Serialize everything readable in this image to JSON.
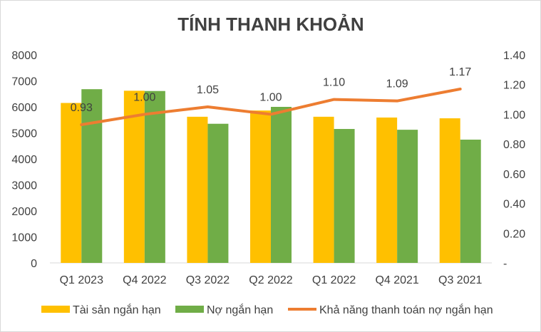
{
  "chart_data": {
    "type": "bar",
    "title": "TÍNH THANH KHOẢN",
    "categories": [
      "Q1 2023",
      "Q4 2022",
      "Q3 2022",
      "Q2 2022",
      "Q1 2022",
      "Q4 2021",
      "Q3 2021"
    ],
    "series": [
      {
        "name": "Tài sản ngắn hạn",
        "type": "bar",
        "axis": "left",
        "color": "#ffc000",
        "values": [
          6150,
          6620,
          5620,
          5860,
          5620,
          5590,
          5560
        ]
      },
      {
        "name": "Nợ ngắn hạn",
        "type": "bar",
        "axis": "left",
        "color": "#70ad47",
        "values": [
          6680,
          6610,
          5350,
          6000,
          5150,
          5120,
          4740
        ]
      },
      {
        "name": "Khả năng thanh toán nợ ngắn hạn",
        "type": "line",
        "axis": "right",
        "color": "#ed7d31",
        "values": [
          0.93,
          1.0,
          1.05,
          1.0,
          1.1,
          1.09,
          1.17
        ],
        "labels": [
          "0.93",
          "1.00",
          "1.05",
          "1.00",
          "1.10",
          "1.09",
          "1.17"
        ]
      }
    ],
    "left_axis": {
      "ylim": [
        0,
        8000
      ],
      "ticks": [
        "0",
        "1000",
        "2000",
        "3000",
        "4000",
        "5000",
        "6000",
        "7000",
        "8000"
      ]
    },
    "right_axis": {
      "ylim": [
        0,
        1.4
      ],
      "ticks": [
        "-",
        "0.20",
        "0.40",
        "0.60",
        "0.80",
        "1.00",
        "1.20",
        "1.40"
      ]
    },
    "grid": false,
    "legend_position": "bottom"
  }
}
